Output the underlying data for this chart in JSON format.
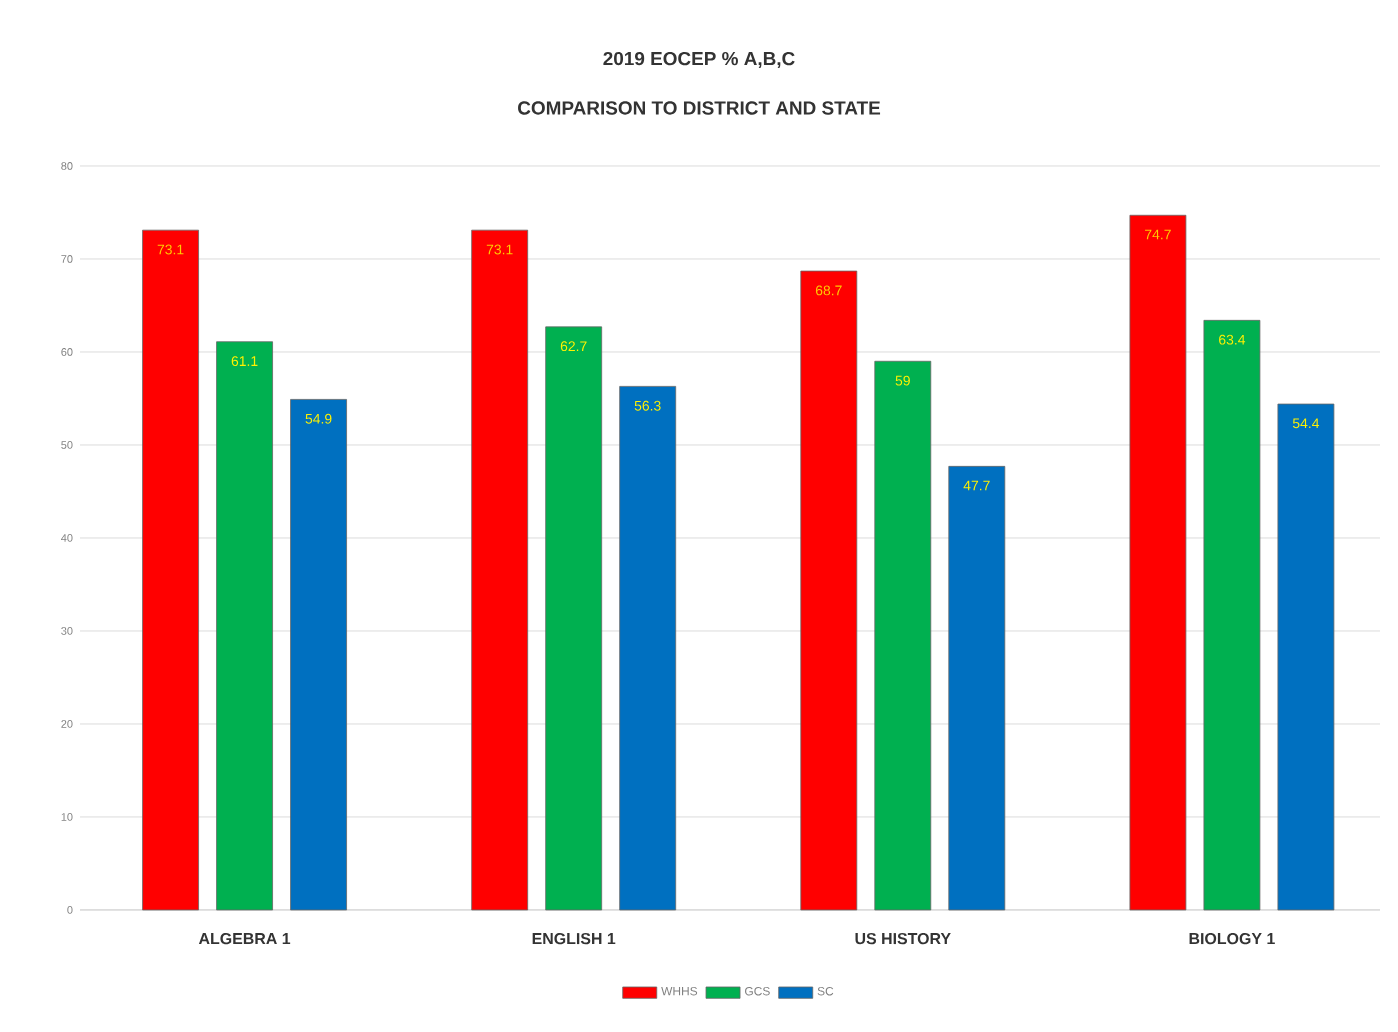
{
  "chart_data": {
    "type": "bar",
    "title": "2019 EOCEP % A,B,C",
    "subtitle": "COMPARISON TO DISTRICT AND STATE",
    "categories": [
      "ALGEBRA 1",
      "ENGLISH 1",
      "US HISTORY",
      "BIOLOGY 1"
    ],
    "series": [
      {
        "name": "WHHS",
        "color": "#ff0000",
        "values": [
          73.1,
          73.1,
          68.7,
          74.7
        ]
      },
      {
        "name": "GCS",
        "color": "#00b050",
        "values": [
          61.1,
          62.7,
          59,
          63.4
        ]
      },
      {
        "name": "SC",
        "color": "#0070c0",
        "values": [
          54.9,
          56.3,
          47.7,
          54.4
        ]
      }
    ],
    "ylim": [
      0,
      80
    ],
    "yticks": [
      0,
      10,
      20,
      30,
      40,
      50,
      60,
      70,
      80
    ],
    "grid": "y",
    "legend": "bottom",
    "data_labels": true
  }
}
